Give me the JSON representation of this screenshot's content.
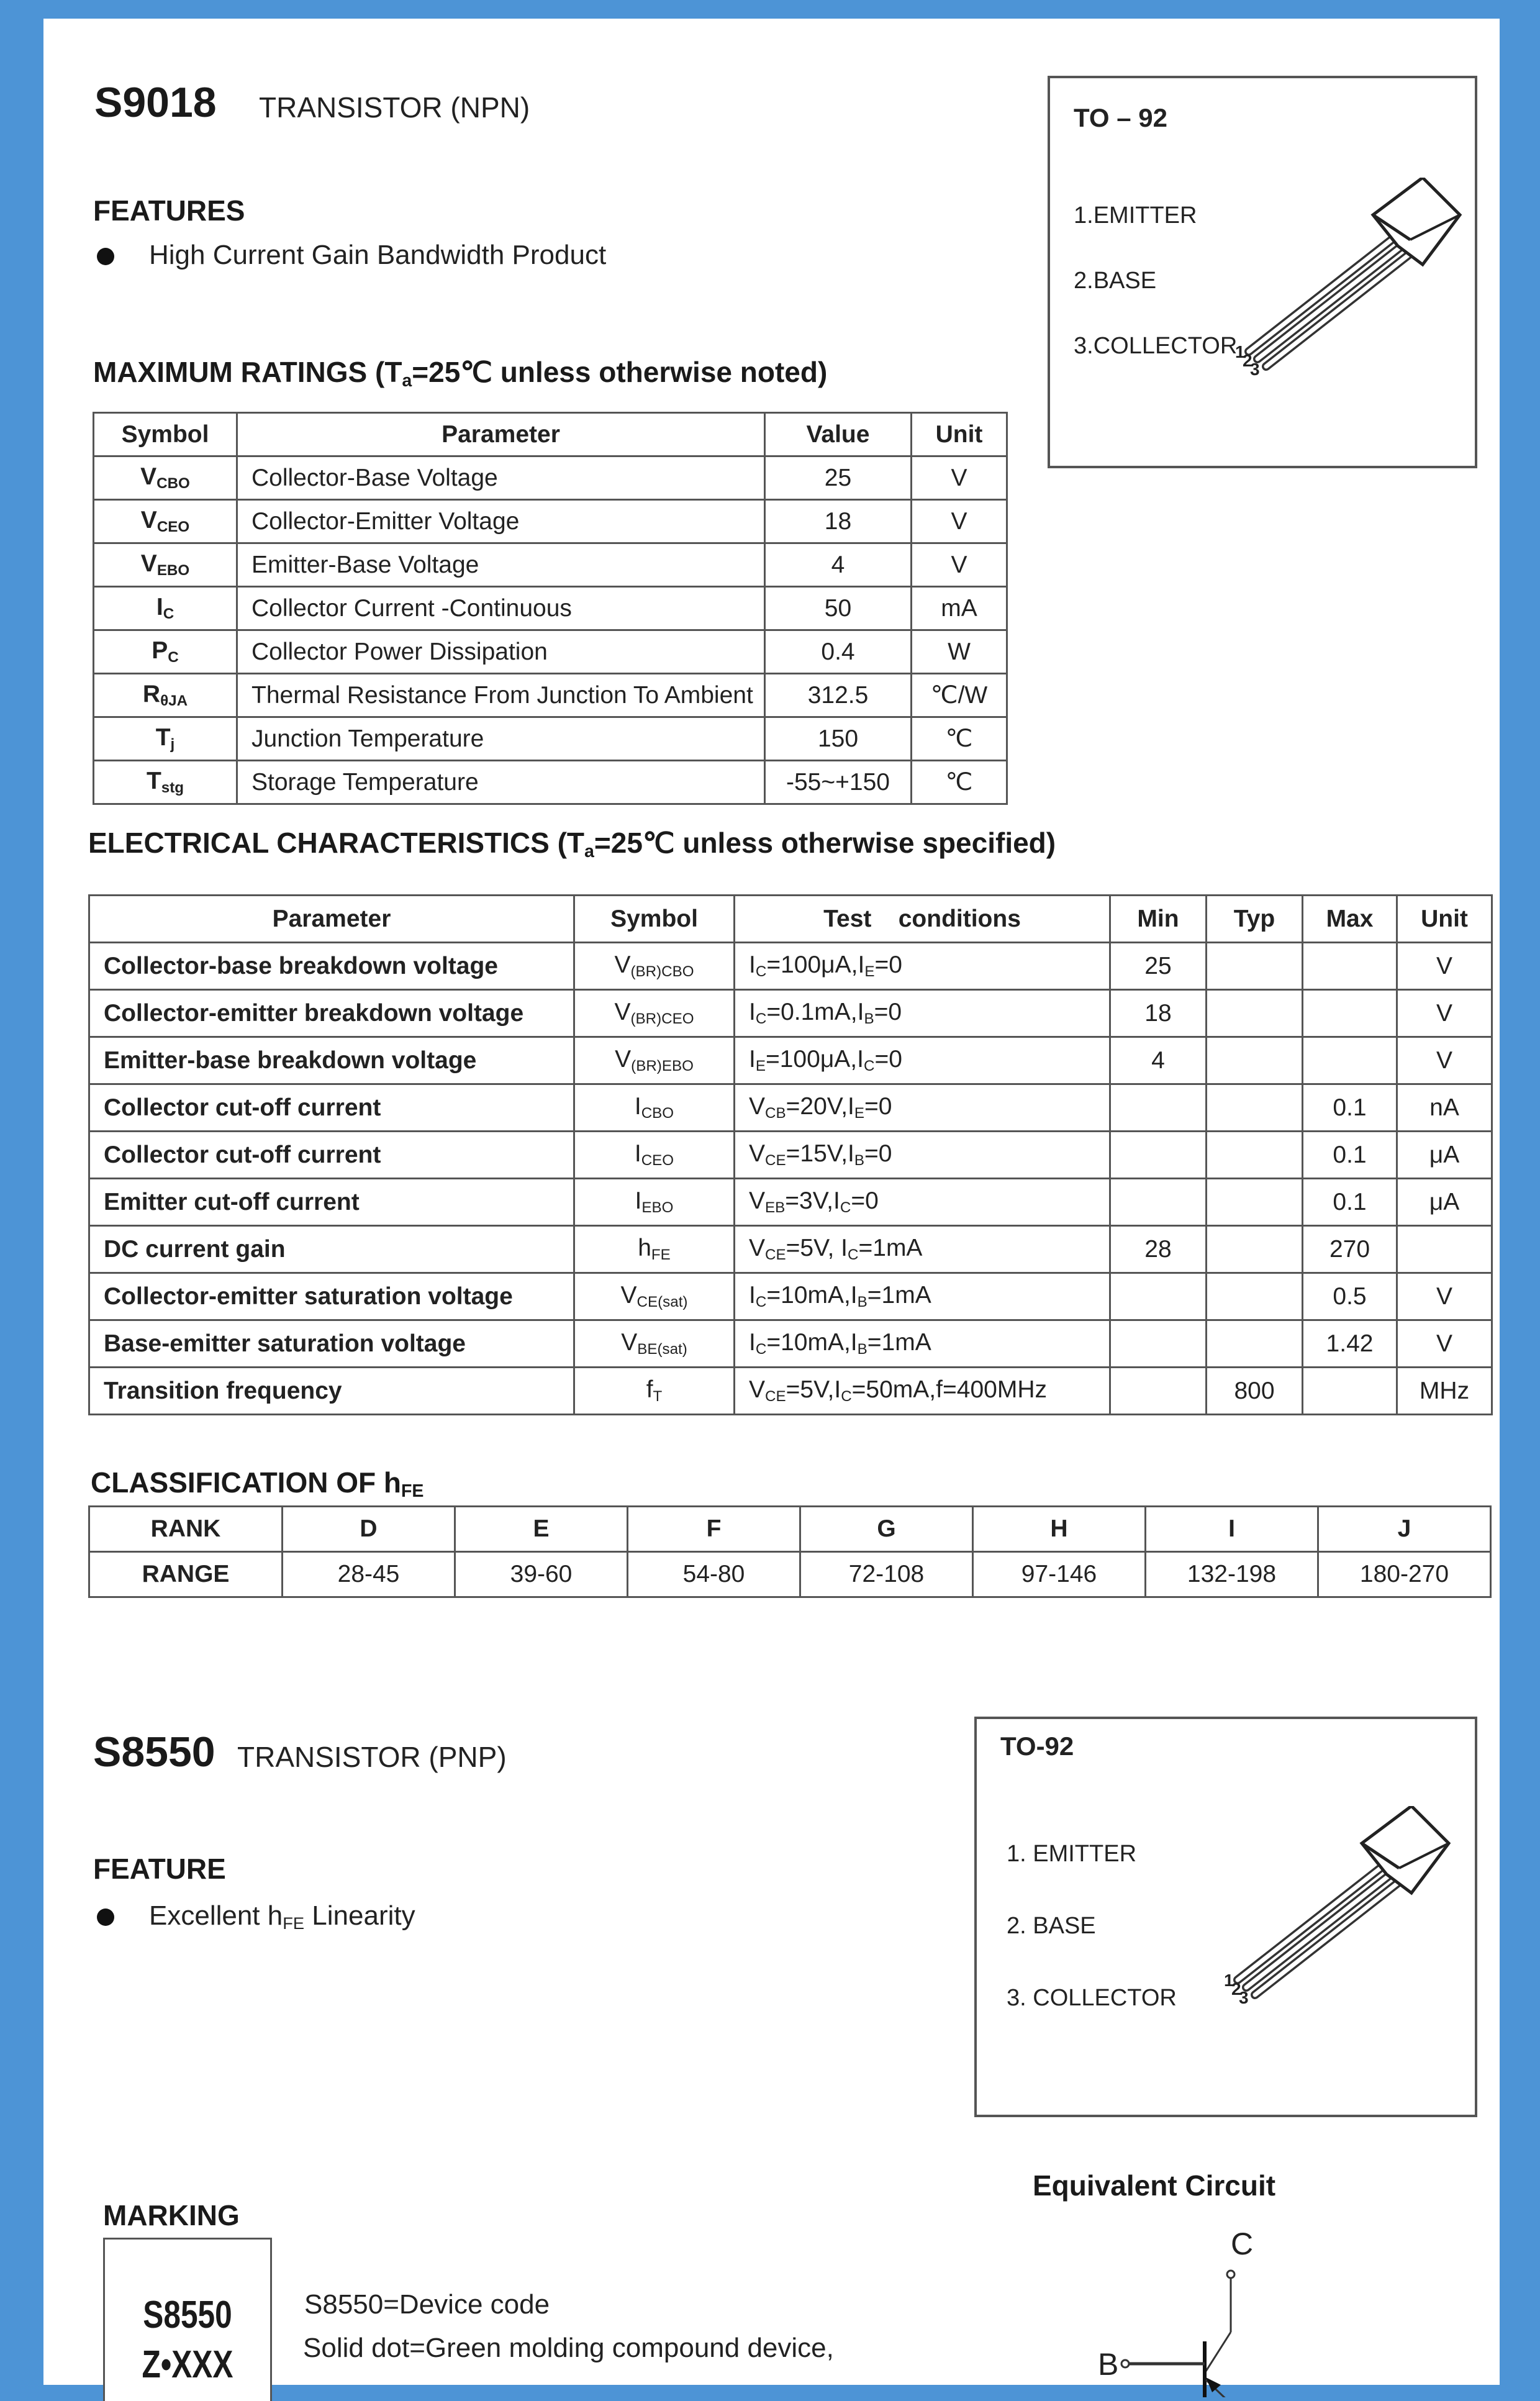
{
  "s9018": {
    "part": "S9018",
    "type": "TRANSISTOR (NPN)",
    "features_heading": "FEATURES",
    "features": [
      "High Current Gain Bandwidth Product"
    ],
    "package": {
      "title": "TO – 92",
      "pins": [
        "1.EMITTER",
        "2.BASE",
        "3.COLLECTOR"
      ],
      "lead_numbers": [
        "1",
        "2",
        "3"
      ]
    },
    "max_ratings": {
      "heading": [
        {
          "t": "MAXIMUM RATINGS (T"
        },
        {
          "s": "a"
        },
        {
          "t": "=25℃ unless otherwise noted)"
        }
      ],
      "headers": [
        "Symbol",
        "Parameter",
        "Value",
        "Unit"
      ],
      "rows": [
        {
          "symbol": [
            {
              "t": "V"
            },
            {
              "s": "CBO"
            }
          ],
          "parameter": "Collector-Base Voltage",
          "value": "25",
          "unit": "V"
        },
        {
          "symbol": [
            {
              "t": "V"
            },
            {
              "s": "CEO"
            }
          ],
          "parameter": "Collector-Emitter Voltage",
          "value": "18",
          "unit": "V"
        },
        {
          "symbol": [
            {
              "t": "V"
            },
            {
              "s": "EBO"
            }
          ],
          "parameter": "Emitter-Base Voltage",
          "value": "4",
          "unit": "V"
        },
        {
          "symbol": [
            {
              "t": "I"
            },
            {
              "s": "C"
            }
          ],
          "parameter": "Collector Current -Continuous",
          "value": "50",
          "unit": "mA"
        },
        {
          "symbol": [
            {
              "t": "P"
            },
            {
              "s": "C"
            }
          ],
          "parameter": "Collector Power Dissipation",
          "value": "0.4",
          "unit": "W"
        },
        {
          "symbol": [
            {
              "t": "R"
            },
            {
              "s": "θJA"
            }
          ],
          "parameter": "Thermal Resistance From Junction To Ambient",
          "value": "312.5",
          "unit": "℃/W"
        },
        {
          "symbol": [
            {
              "t": "T"
            },
            {
              "s": "j"
            }
          ],
          "parameter": "Junction Temperature",
          "value": "150",
          "unit": "℃"
        },
        {
          "symbol": [
            {
              "t": "T"
            },
            {
              "s": "stg"
            }
          ],
          "parameter": "Storage Temperature",
          "value": "-55~+150",
          "unit": "℃"
        }
      ]
    },
    "electrical": {
      "heading": [
        {
          "t": "ELECTRICAL CHARACTERISTICS (T"
        },
        {
          "s": "a"
        },
        {
          "t": "=25℃ unless otherwise specified)"
        }
      ],
      "headers": [
        "Parameter",
        "Symbol",
        "Test    conditions",
        "Min",
        "Typ",
        "Max",
        "Unit"
      ],
      "rows": [
        {
          "parameter": "Collector-base breakdown voltage",
          "symbol": [
            {
              "t": "V"
            },
            {
              "s": "(BR)CBO"
            }
          ],
          "conditions": [
            {
              "t": "I"
            },
            {
              "s": "C"
            },
            {
              "t": "=100μA,I"
            },
            {
              "s": "E"
            },
            {
              "t": "=0"
            }
          ],
          "min": "25",
          "typ": "",
          "max": "",
          "unit": "V"
        },
        {
          "parameter": "Collector-emitter breakdown voltage",
          "symbol": [
            {
              "t": "V"
            },
            {
              "s": "(BR)CEO"
            }
          ],
          "conditions": [
            {
              "t": "I"
            },
            {
              "s": "C"
            },
            {
              "t": "=0.1mA,I"
            },
            {
              "s": "B"
            },
            {
              "t": "=0"
            }
          ],
          "min": "18",
          "typ": "",
          "max": "",
          "unit": "V"
        },
        {
          "parameter": "Emitter-base breakdown voltage",
          "symbol": [
            {
              "t": "V"
            },
            {
              "s": "(BR)EBO"
            }
          ],
          "conditions": [
            {
              "t": "I"
            },
            {
              "s": "E"
            },
            {
              "t": "=100μA,I"
            },
            {
              "s": "C"
            },
            {
              "t": "=0"
            }
          ],
          "min": "4",
          "typ": "",
          "max": "",
          "unit": "V"
        },
        {
          "parameter": "Collector cut-off current",
          "symbol": [
            {
              "t": "I"
            },
            {
              "s": "CBO"
            }
          ],
          "conditions": [
            {
              "t": "V"
            },
            {
              "s": "CB"
            },
            {
              "t": "=20V,I"
            },
            {
              "s": "E"
            },
            {
              "t": "=0"
            }
          ],
          "min": "",
          "typ": "",
          "max": "0.1",
          "unit": "nA"
        },
        {
          "parameter": "Collector cut-off current",
          "symbol": [
            {
              "t": "I"
            },
            {
              "s": "CEO"
            }
          ],
          "conditions": [
            {
              "t": "V"
            },
            {
              "s": "CE"
            },
            {
              "t": "=15V,I"
            },
            {
              "s": "B"
            },
            {
              "t": "=0"
            }
          ],
          "min": "",
          "typ": "",
          "max": "0.1",
          "unit": "μA"
        },
        {
          "parameter": "Emitter cut-off current",
          "symbol": [
            {
              "t": "I"
            },
            {
              "s": "EBO"
            }
          ],
          "conditions": [
            {
              "t": "V"
            },
            {
              "s": "EB"
            },
            {
              "t": "=3V,I"
            },
            {
              "s": "C"
            },
            {
              "t": "=0"
            }
          ],
          "min": "",
          "typ": "",
          "max": "0.1",
          "unit": "μA"
        },
        {
          "parameter": "DC current gain",
          "symbol": [
            {
              "t": "h"
            },
            {
              "s": "FE"
            }
          ],
          "conditions": [
            {
              "t": "V"
            },
            {
              "s": "CE"
            },
            {
              "t": "=5V, I"
            },
            {
              "s": "C"
            },
            {
              "t": "=1mA"
            }
          ],
          "min": "28",
          "typ": "",
          "max": "270",
          "unit": ""
        },
        {
          "parameter": "Collector-emitter saturation voltage",
          "symbol": [
            {
              "t": "V"
            },
            {
              "s": "CE(sat)"
            }
          ],
          "conditions": [
            {
              "t": "I"
            },
            {
              "s": "C"
            },
            {
              "t": "=10mA,I"
            },
            {
              "s": "B"
            },
            {
              "t": "=1mA"
            }
          ],
          "min": "",
          "typ": "",
          "max": "0.5",
          "unit": "V"
        },
        {
          "parameter": "Base-emitter saturation voltage",
          "symbol": [
            {
              "t": "V"
            },
            {
              "s": "BE(sat)"
            }
          ],
          "conditions": [
            {
              "t": "I"
            },
            {
              "s": "C"
            },
            {
              "t": "=10mA,I"
            },
            {
              "s": "B"
            },
            {
              "t": "=1mA"
            }
          ],
          "min": "",
          "typ": "",
          "max": "1.42",
          "unit": "V"
        },
        {
          "parameter": "Transition frequency",
          "symbol": [
            {
              "t": "f"
            },
            {
              "s": "T"
            }
          ],
          "conditions": [
            {
              "t": "V"
            },
            {
              "s": "CE"
            },
            {
              "t": "=5V,I"
            },
            {
              "s": "C"
            },
            {
              "t": "=50mA,f=400MHz"
            }
          ],
          "min": "",
          "typ": "800",
          "max": "",
          "unit": "MHz"
        }
      ]
    },
    "classification": {
      "heading": [
        {
          "t": "CLASSIFICATION OF h"
        },
        {
          "s": "FE"
        }
      ],
      "rank_label": "RANK",
      "range_label": "RANGE",
      "ranks": [
        "D",
        "E",
        "F",
        "G",
        "H",
        "I",
        "J"
      ],
      "ranges": [
        "28-45",
        "39-60",
        "54-80",
        "72-108",
        "97-146",
        "132-198",
        "180-270"
      ]
    }
  },
  "s8550": {
    "part": "S8550",
    "type": "TRANSISTOR (PNP)",
    "feature_heading": "FEATURE",
    "features": [
      [
        {
          "t": "Excellent h"
        },
        {
          "s": "FE"
        },
        {
          "t": " Linearity"
        }
      ]
    ],
    "package": {
      "title": "TO-92",
      "pins": [
        "1.  EMITTER",
        "2.  BASE",
        "3.  COLLECTOR"
      ],
      "lead_numbers": [
        "1",
        "2",
        "3"
      ]
    },
    "marking": {
      "heading": "MARKING",
      "chip_line1": "S8550",
      "chip_line2": "Z•XXX",
      "notes": [
        "S8550=Device code",
        "Solid dot=Green molding compound device,"
      ]
    },
    "equivalent_circuit": {
      "title": "Equivalent  Circuit",
      "labels": {
        "collector": "C",
        "base": "B"
      }
    }
  }
}
